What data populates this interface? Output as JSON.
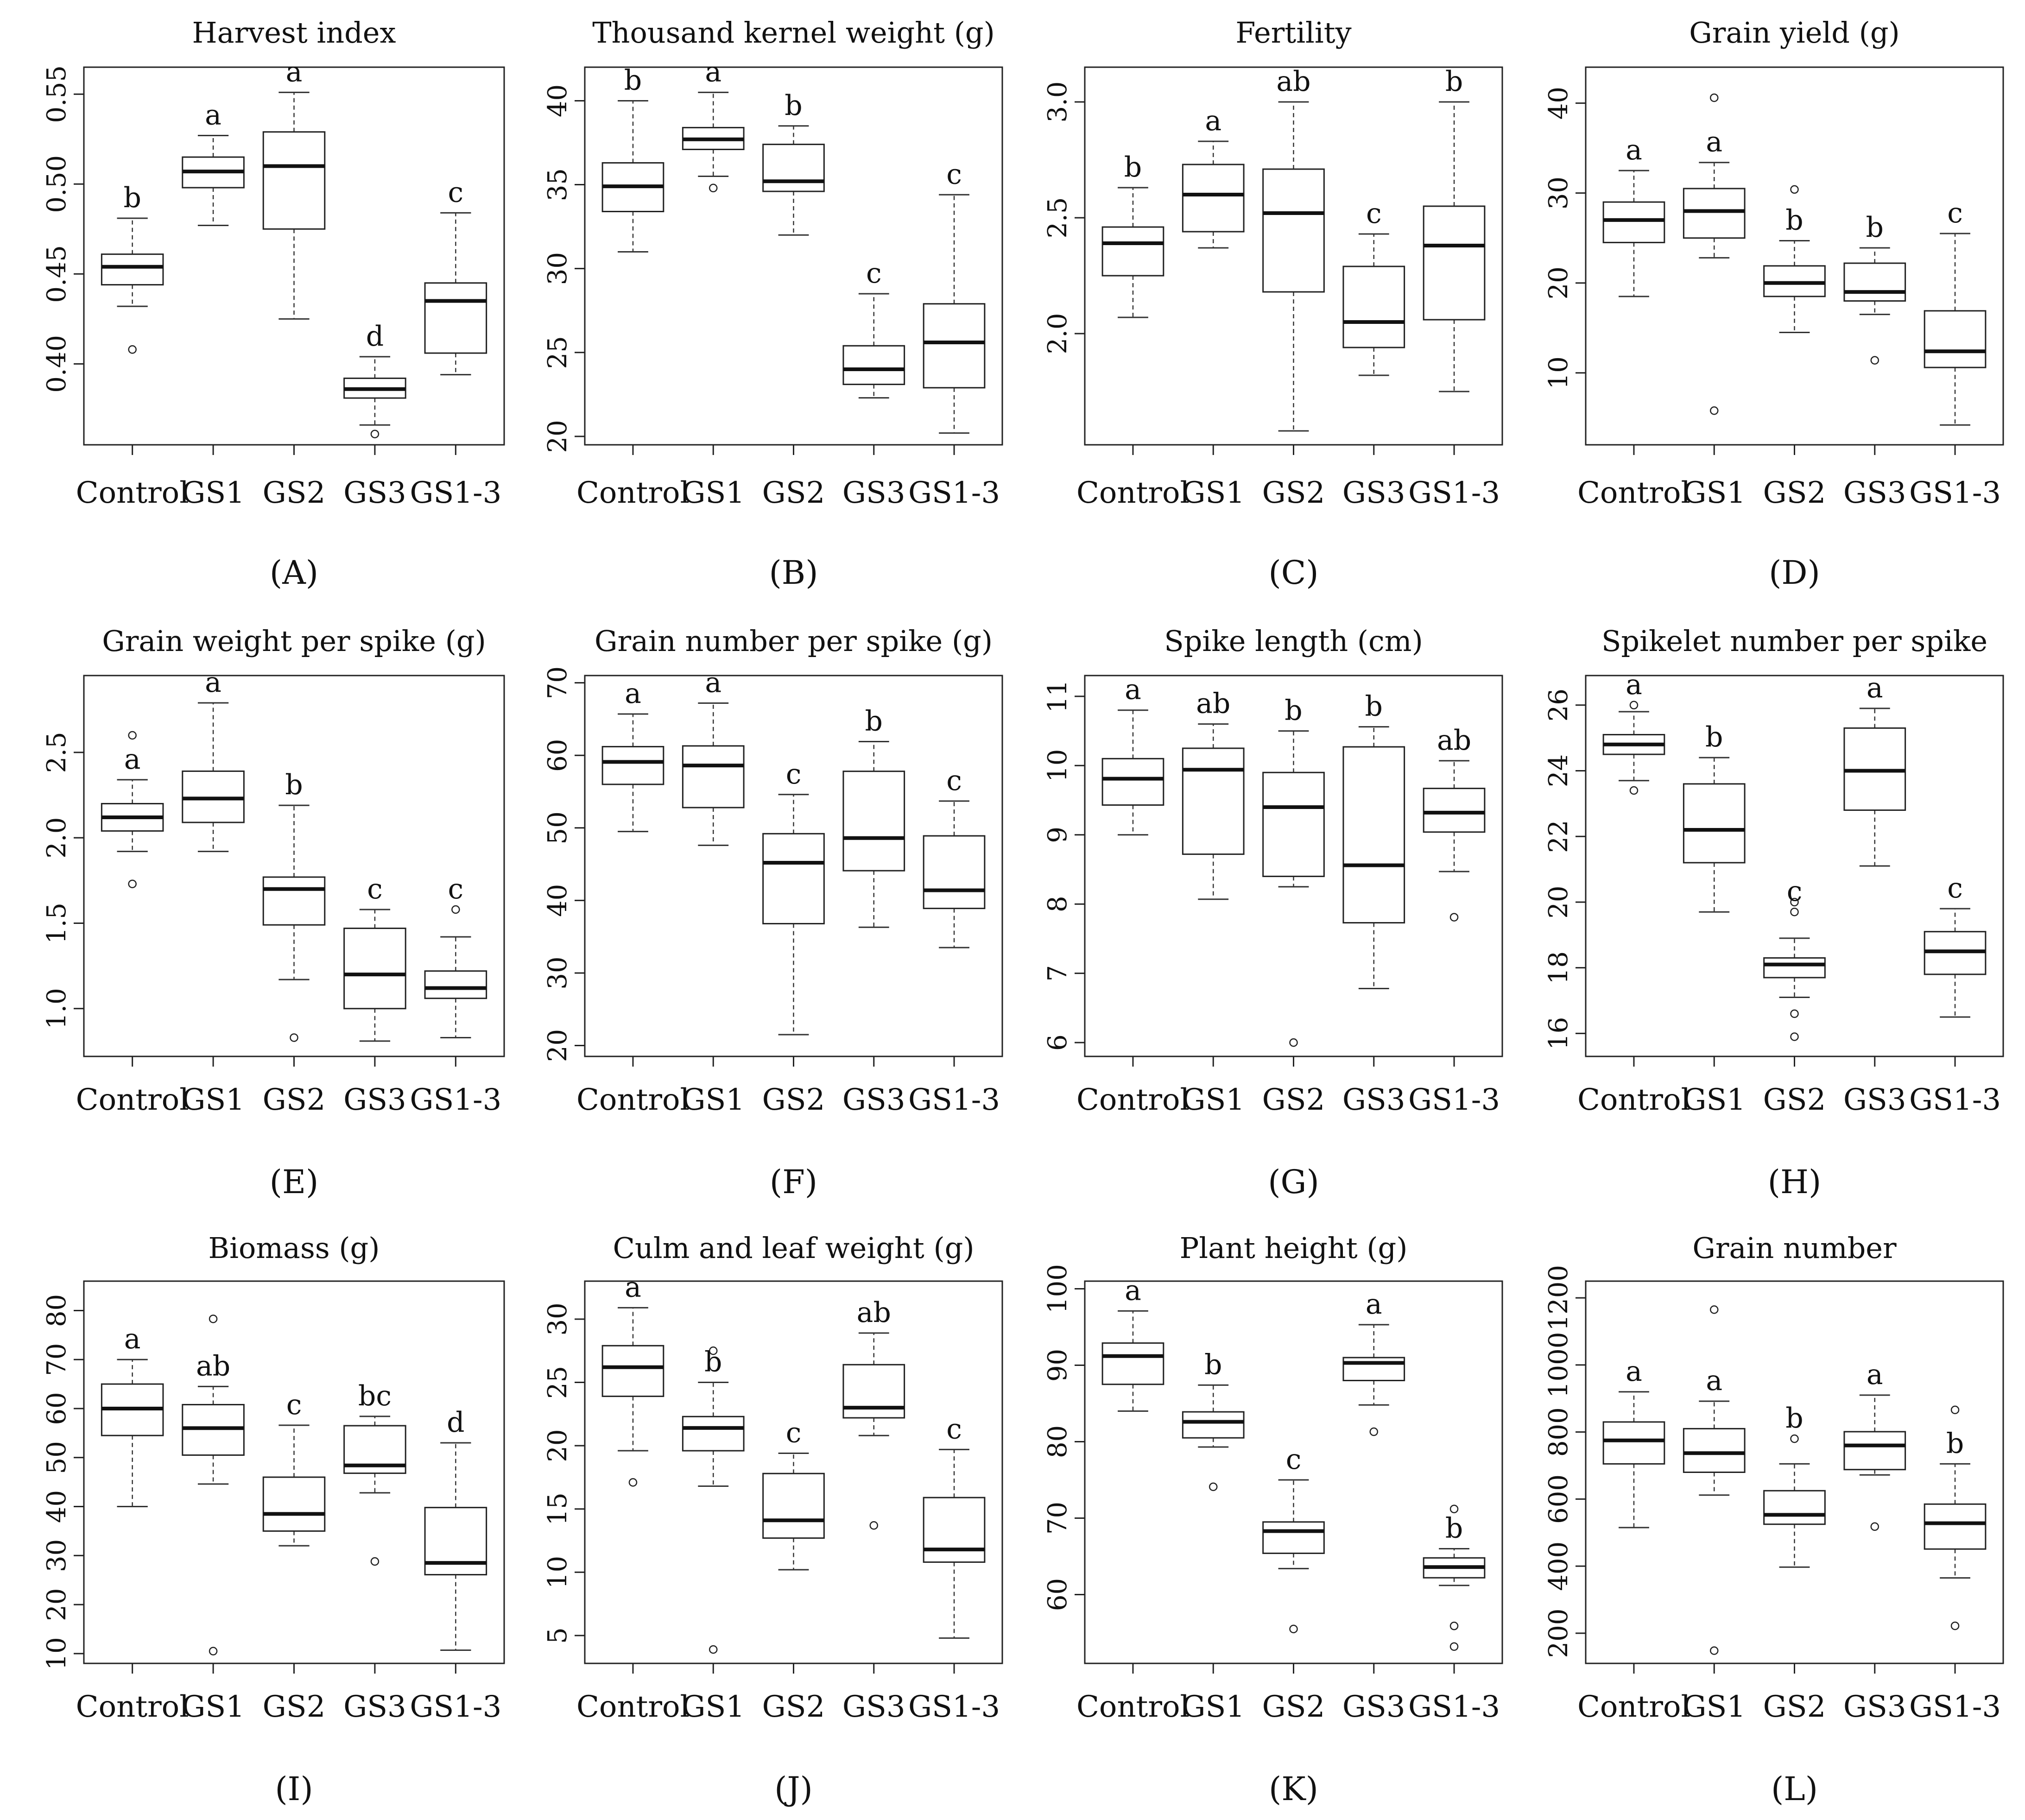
{
  "categories": [
    "Control",
    "GS1",
    "GS2",
    "GS3",
    "GS1-3"
  ],
  "chart_data": [
    {
      "type": "box",
      "label": "(A)",
      "title": "Harvest index",
      "ylim": [
        0.355,
        0.565
      ],
      "yticks": [
        0.4,
        0.45,
        0.5,
        0.55
      ],
      "ytick_labels": [
        "0.40",
        "0.45",
        "0.50",
        "0.55"
      ],
      "boxes": [
        {
          "category": "Control",
          "whisker_low": 0.432,
          "q1": 0.444,
          "median": 0.454,
          "q3": 0.461,
          "whisker_high": 0.481,
          "outliers": [
            0.408
          ],
          "group": "b"
        },
        {
          "category": "GS1",
          "whisker_low": 0.477,
          "q1": 0.498,
          "median": 0.507,
          "q3": 0.515,
          "whisker_high": 0.527,
          "outliers": [],
          "group": "a"
        },
        {
          "category": "GS2",
          "whisker_low": 0.425,
          "q1": 0.475,
          "median": 0.51,
          "q3": 0.529,
          "whisker_high": 0.551,
          "outliers": [],
          "group": "a"
        },
        {
          "category": "GS3",
          "whisker_low": 0.366,
          "q1": 0.381,
          "median": 0.386,
          "q3": 0.392,
          "whisker_high": 0.404,
          "outliers": [
            0.361
          ],
          "group": "d"
        },
        {
          "category": "GS1-3",
          "whisker_low": 0.394,
          "q1": 0.406,
          "median": 0.435,
          "q3": 0.445,
          "whisker_high": 0.484,
          "outliers": [],
          "group": "c"
        }
      ]
    },
    {
      "type": "box",
      "label": "(B)",
      "title": "Thousand kernel weight (g)",
      "ylim": [
        19.5,
        42
      ],
      "yticks": [
        20,
        25,
        30,
        35,
        40
      ],
      "ytick_labels": [
        "20",
        "25",
        "30",
        "35",
        "40"
      ],
      "boxes": [
        {
          "category": "Control",
          "whisker_low": 31.0,
          "q1": 33.4,
          "median": 34.9,
          "q3": 36.3,
          "whisker_high": 40.0,
          "outliers": [],
          "group": "b"
        },
        {
          "category": "GS1",
          "whisker_low": 35.5,
          "q1": 37.1,
          "median": 37.7,
          "q3": 38.4,
          "whisker_high": 40.5,
          "outliers": [
            34.8
          ],
          "group": "a"
        },
        {
          "category": "GS2",
          "whisker_low": 32.0,
          "q1": 34.6,
          "median": 35.2,
          "q3": 37.4,
          "whisker_high": 38.5,
          "outliers": [],
          "group": "b"
        },
        {
          "category": "GS3",
          "whisker_low": 22.3,
          "q1": 23.1,
          "median": 24.0,
          "q3": 25.4,
          "whisker_high": 28.5,
          "outliers": [],
          "group": "c"
        },
        {
          "category": "GS1-3",
          "whisker_low": 20.2,
          "q1": 22.9,
          "median": 25.6,
          "q3": 27.9,
          "whisker_high": 34.4,
          "outliers": [],
          "group": "c"
        }
      ]
    },
    {
      "type": "box",
      "label": "(C)",
      "title": "Fertility",
      "ylim": [
        1.52,
        3.15
      ],
      "yticks": [
        2.0,
        2.5,
        3.0
      ],
      "ytick_labels": [
        "2.0",
        "2.5",
        "3.0"
      ],
      "boxes": [
        {
          "category": "Control",
          "whisker_low": 2.07,
          "q1": 2.25,
          "median": 2.39,
          "q3": 2.46,
          "whisker_high": 2.63,
          "outliers": [],
          "group": "b"
        },
        {
          "category": "GS1",
          "whisker_low": 2.37,
          "q1": 2.44,
          "median": 2.6,
          "q3": 2.73,
          "whisker_high": 2.83,
          "outliers": [],
          "group": "a"
        },
        {
          "category": "GS2",
          "whisker_low": 1.58,
          "q1": 2.18,
          "median": 2.52,
          "q3": 2.71,
          "whisker_high": 3.0,
          "outliers": [],
          "group": "ab"
        },
        {
          "category": "GS3",
          "whisker_low": 1.82,
          "q1": 1.94,
          "median": 2.05,
          "q3": 2.29,
          "whisker_high": 2.43,
          "outliers": [],
          "group": "c"
        },
        {
          "category": "GS1-3",
          "whisker_low": 1.75,
          "q1": 2.06,
          "median": 2.38,
          "q3": 2.55,
          "whisker_high": 3.0,
          "outliers": [],
          "group": "b"
        }
      ]
    },
    {
      "type": "box",
      "label": "(D)",
      "title": "Grain yield (g)",
      "ylim": [
        2,
        44
      ],
      "yticks": [
        10,
        20,
        30,
        40
      ],
      "ytick_labels": [
        "10",
        "20",
        "30",
        "40"
      ],
      "boxes": [
        {
          "category": "Control",
          "whisker_low": 18.5,
          "q1": 24.5,
          "median": 27.0,
          "q3": 29.0,
          "whisker_high": 32.5,
          "outliers": [],
          "group": "a"
        },
        {
          "category": "GS1",
          "whisker_low": 22.8,
          "q1": 25.0,
          "median": 28.0,
          "q3": 30.5,
          "whisker_high": 33.4,
          "outliers": [
            5.8,
            40.6
          ],
          "group": "a"
        },
        {
          "category": "GS2",
          "whisker_low": 14.5,
          "q1": 18.5,
          "median": 20.0,
          "q3": 21.9,
          "whisker_high": 24.7,
          "outliers": [
            30.4
          ],
          "group": "b"
        },
        {
          "category": "GS3",
          "whisker_low": 16.5,
          "q1": 18.0,
          "median": 19.0,
          "q3": 22.2,
          "whisker_high": 23.9,
          "outliers": [
            11.4
          ],
          "group": "b"
        },
        {
          "category": "GS1-3",
          "whisker_low": 4.2,
          "q1": 10.6,
          "median": 12.4,
          "q3": 16.9,
          "whisker_high": 25.5,
          "outliers": [],
          "group": "c"
        }
      ]
    },
    {
      "type": "box",
      "label": "(E)",
      "title": "Grain weight per spike (g)",
      "ylim": [
        0.72,
        2.95
      ],
      "yticks": [
        1.0,
        1.5,
        2.0,
        2.5
      ],
      "ytick_labels": [
        "1.0",
        "1.5",
        "2.0",
        "2.5"
      ],
      "boxes": [
        {
          "category": "Control",
          "whisker_low": 1.92,
          "q1": 2.04,
          "median": 2.12,
          "q3": 2.2,
          "whisker_high": 2.34,
          "outliers": [
            1.73,
            2.6
          ],
          "group": "a"
        },
        {
          "category": "GS1",
          "whisker_low": 1.92,
          "q1": 2.09,
          "median": 2.23,
          "q3": 2.39,
          "whisker_high": 2.79,
          "outliers": [],
          "group": "a"
        },
        {
          "category": "GS2",
          "whisker_low": 1.17,
          "q1": 1.49,
          "median": 1.7,
          "q3": 1.77,
          "whisker_high": 2.19,
          "outliers": [
            0.83
          ],
          "group": "b"
        },
        {
          "category": "GS3",
          "whisker_low": 0.81,
          "q1": 1.0,
          "median": 1.2,
          "q3": 1.47,
          "whisker_high": 1.58,
          "outliers": [],
          "group": "c"
        },
        {
          "category": "GS1-3",
          "whisker_low": 0.83,
          "q1": 1.06,
          "median": 1.12,
          "q3": 1.22,
          "whisker_high": 1.42,
          "outliers": [
            1.58
          ],
          "group": "c"
        }
      ]
    },
    {
      "type": "box",
      "label": "(F)",
      "title": "Grain number per spike (g)",
      "ylim": [
        18.5,
        71
      ],
      "yticks": [
        20,
        30,
        40,
        50,
        60,
        70
      ],
      "ytick_labels": [
        "20",
        "30",
        "40",
        "50",
        "60",
        "70"
      ],
      "boxes": [
        {
          "category": "Control",
          "whisker_low": 49.5,
          "q1": 56.0,
          "median": 59.1,
          "q3": 61.2,
          "whisker_high": 65.7,
          "outliers": [],
          "group": "a"
        },
        {
          "category": "GS1",
          "whisker_low": 47.6,
          "q1": 52.8,
          "median": 58.6,
          "q3": 61.3,
          "whisker_high": 67.2,
          "outliers": [],
          "group": "a"
        },
        {
          "category": "GS2",
          "whisker_low": 21.5,
          "q1": 36.8,
          "median": 45.2,
          "q3": 49.2,
          "whisker_high": 54.6,
          "outliers": [],
          "group": "c"
        },
        {
          "category": "GS3",
          "whisker_low": 36.3,
          "q1": 44.1,
          "median": 48.6,
          "q3": 57.8,
          "whisker_high": 61.9,
          "outliers": [],
          "group": "b"
        },
        {
          "category": "GS1-3",
          "whisker_low": 33.5,
          "q1": 38.9,
          "median": 41.4,
          "q3": 48.9,
          "whisker_high": 53.7,
          "outliers": [],
          "group": "c"
        }
      ]
    },
    {
      "type": "box",
      "label": "(G)",
      "title": "Spike length (cm)",
      "ylim": [
        5.8,
        11.3
      ],
      "yticks": [
        6,
        7,
        8,
        9,
        10,
        11
      ],
      "ytick_labels": [
        "6",
        "7",
        "8",
        "9",
        "10",
        "11"
      ],
      "boxes": [
        {
          "category": "Control",
          "whisker_low": 9.0,
          "q1": 9.43,
          "median": 9.81,
          "q3": 10.1,
          "whisker_high": 10.8,
          "outliers": [],
          "group": "a"
        },
        {
          "category": "GS1",
          "whisker_low": 8.07,
          "q1": 8.72,
          "median": 9.94,
          "q3": 10.25,
          "whisker_high": 10.6,
          "outliers": [],
          "group": "ab"
        },
        {
          "category": "GS2",
          "whisker_low": 8.25,
          "q1": 8.4,
          "median": 9.4,
          "q3": 9.9,
          "whisker_high": 10.5,
          "outliers": [
            6.0
          ],
          "group": "b"
        },
        {
          "category": "GS3",
          "whisker_low": 6.78,
          "q1": 7.73,
          "median": 8.56,
          "q3": 10.27,
          "whisker_high": 10.56,
          "outliers": [],
          "group": "b"
        },
        {
          "category": "GS1-3",
          "whisker_low": 8.47,
          "q1": 9.04,
          "median": 9.32,
          "q3": 9.67,
          "whisker_high": 10.07,
          "outliers": [
            7.81
          ],
          "group": "ab"
        }
      ]
    },
    {
      "type": "box",
      "label": "(H)",
      "title": "Spikelet number per spike",
      "ylim": [
        15.3,
        26.9
      ],
      "yticks": [
        16,
        18,
        20,
        22,
        24,
        26
      ],
      "ytick_labels": [
        "16",
        "18",
        "20",
        "22",
        "24",
        "26"
      ],
      "boxes": [
        {
          "category": "Control",
          "whisker_low": 23.7,
          "q1": 24.5,
          "median": 24.8,
          "q3": 25.1,
          "whisker_high": 25.8,
          "outliers": [
            23.4,
            26.0
          ],
          "group": "a"
        },
        {
          "category": "GS1",
          "whisker_low": 19.7,
          "q1": 21.2,
          "median": 22.2,
          "q3": 23.6,
          "whisker_high": 24.4,
          "outliers": [],
          "group": "b"
        },
        {
          "category": "GS2",
          "whisker_low": 17.1,
          "q1": 17.7,
          "median": 18.1,
          "q3": 18.3,
          "whisker_high": 18.9,
          "outliers": [
            15.9,
            16.6,
            19.7,
            20.0
          ],
          "group": "c"
        },
        {
          "category": "GS3",
          "whisker_low": 21.1,
          "q1": 22.8,
          "median": 24.0,
          "q3": 25.3,
          "whisker_high": 25.9,
          "outliers": [],
          "group": "a"
        },
        {
          "category": "GS1-3",
          "whisker_low": 16.5,
          "q1": 17.8,
          "median": 18.5,
          "q3": 19.1,
          "whisker_high": 19.8,
          "outliers": [],
          "group": "c"
        }
      ]
    },
    {
      "type": "box",
      "label": "(I)",
      "title": "Biomass (g)",
      "ylim": [
        8,
        86
      ],
      "yticks": [
        10,
        20,
        30,
        40,
        50,
        60,
        70,
        80
      ],
      "ytick_labels": [
        "10",
        "20",
        "30",
        "40",
        "50",
        "60",
        "70",
        "80"
      ],
      "boxes": [
        {
          "category": "Control",
          "whisker_low": 40.0,
          "q1": 54.5,
          "median": 60.0,
          "q3": 65.0,
          "whisker_high": 70.0,
          "outliers": [],
          "group": "a"
        },
        {
          "category": "GS1",
          "whisker_low": 44.6,
          "q1": 50.5,
          "median": 56.0,
          "q3": 60.8,
          "whisker_high": 64.5,
          "outliers": [
            10.5,
            78.3
          ],
          "group": "ab"
        },
        {
          "category": "GS2",
          "whisker_low": 32.0,
          "q1": 35.0,
          "median": 38.5,
          "q3": 46.0,
          "whisker_high": 56.6,
          "outliers": [],
          "group": "c"
        },
        {
          "category": "GS3",
          "whisker_low": 42.8,
          "q1": 46.8,
          "median": 48.4,
          "q3": 56.5,
          "whisker_high": 58.4,
          "outliers": [
            28.8
          ],
          "group": "bc"
        },
        {
          "category": "GS1-3",
          "whisker_low": 10.7,
          "q1": 26.1,
          "median": 28.5,
          "q3": 39.8,
          "whisker_high": 53.0,
          "outliers": [],
          "group": "d"
        }
      ]
    },
    {
      "type": "box",
      "label": "(J)",
      "title": "Culm and leaf weight (g)",
      "ylim": [
        2.8,
        33
      ],
      "yticks": [
        5,
        10,
        15,
        20,
        25,
        30
      ],
      "ytick_labels": [
        "5",
        "10",
        "15",
        "20",
        "25",
        "30"
      ],
      "boxes": [
        {
          "category": "Control",
          "whisker_low": 19.6,
          "q1": 23.9,
          "median": 26.2,
          "q3": 27.9,
          "whisker_high": 30.9,
          "outliers": [
            17.1
          ],
          "group": "a"
        },
        {
          "category": "GS1",
          "whisker_low": 16.8,
          "q1": 19.6,
          "median": 21.4,
          "q3": 22.3,
          "whisker_high": 25.0,
          "outliers": [
            3.9,
            27.5
          ],
          "group": "b"
        },
        {
          "category": "GS2",
          "whisker_low": 10.2,
          "q1": 12.7,
          "median": 14.1,
          "q3": 17.8,
          "whisker_high": 19.4,
          "outliers": [],
          "group": "c"
        },
        {
          "category": "GS3",
          "whisker_low": 20.8,
          "q1": 22.2,
          "median": 23.0,
          "q3": 26.4,
          "whisker_high": 28.9,
          "outliers": [
            13.7
          ],
          "group": "ab"
        },
        {
          "category": "GS1-3",
          "whisker_low": 4.8,
          "q1": 10.8,
          "median": 11.8,
          "q3": 15.9,
          "whisker_high": 19.7,
          "outliers": [],
          "group": "c"
        }
      ]
    },
    {
      "type": "box",
      "label": "(K)",
      "title": "Plant height (g)",
      "ylim": [
        51,
        101
      ],
      "yticks": [
        60,
        70,
        80,
        90,
        100
      ],
      "ytick_labels": [
        "60",
        "70",
        "80",
        "90",
        "100"
      ],
      "boxes": [
        {
          "category": "Control",
          "whisker_low": 84.0,
          "q1": 87.5,
          "median": 91.2,
          "q3": 92.9,
          "whisker_high": 97.1,
          "outliers": [],
          "group": "a"
        },
        {
          "category": "GS1",
          "whisker_low": 79.3,
          "q1": 80.5,
          "median": 82.6,
          "q3": 83.9,
          "whisker_high": 87.4,
          "outliers": [
            74.1
          ],
          "group": "b"
        },
        {
          "category": "GS2",
          "whisker_low": 63.4,
          "q1": 65.4,
          "median": 68.3,
          "q3": 69.5,
          "whisker_high": 75.0,
          "outliers": [
            55.5
          ],
          "group": "c"
        },
        {
          "category": "GS3",
          "whisker_low": 84.8,
          "q1": 88.0,
          "median": 90.3,
          "q3": 91.0,
          "whisker_high": 95.3,
          "outliers": [
            81.3
          ],
          "group": "a"
        },
        {
          "category": "GS1-3",
          "whisker_low": 61.2,
          "q1": 62.2,
          "median": 63.6,
          "q3": 64.8,
          "whisker_high": 66.0,
          "outliers": [
            53.2,
            55.9,
            71.2
          ],
          "group": "b"
        }
      ]
    },
    {
      "type": "box",
      "label": "(L)",
      "title": "Grain number",
      "ylim": [
        110,
        1250
      ],
      "yticks": [
        200,
        400,
        600,
        800,
        1000,
        1200
      ],
      "ytick_labels": [
        "200",
        "400",
        "600",
        "800",
        "1000",
        "1200"
      ],
      "boxes": [
        {
          "category": "Control",
          "whisker_low": 515,
          "q1": 705,
          "median": 775,
          "q3": 830,
          "whisker_high": 920,
          "outliers": [],
          "group": "a"
        },
        {
          "category": "GS1",
          "whisker_low": 612,
          "q1": 680,
          "median": 737,
          "q3": 810,
          "whisker_high": 892,
          "outliers": [
            148,
            1165
          ],
          "group": "a"
        },
        {
          "category": "GS2",
          "whisker_low": 397,
          "q1": 525,
          "median": 553,
          "q3": 625,
          "whisker_high": 705,
          "outliers": [
            780
          ],
          "group": "b"
        },
        {
          "category": "GS3",
          "whisker_low": 672,
          "q1": 688,
          "median": 760,
          "q3": 801,
          "whisker_high": 910,
          "outliers": [
            518
          ],
          "group": "a"
        },
        {
          "category": "GS1-3",
          "whisker_low": 365,
          "q1": 451,
          "median": 528,
          "q3": 585,
          "whisker_high": 705,
          "outliers": [
            222,
            866
          ],
          "group": "b"
        }
      ]
    }
  ]
}
